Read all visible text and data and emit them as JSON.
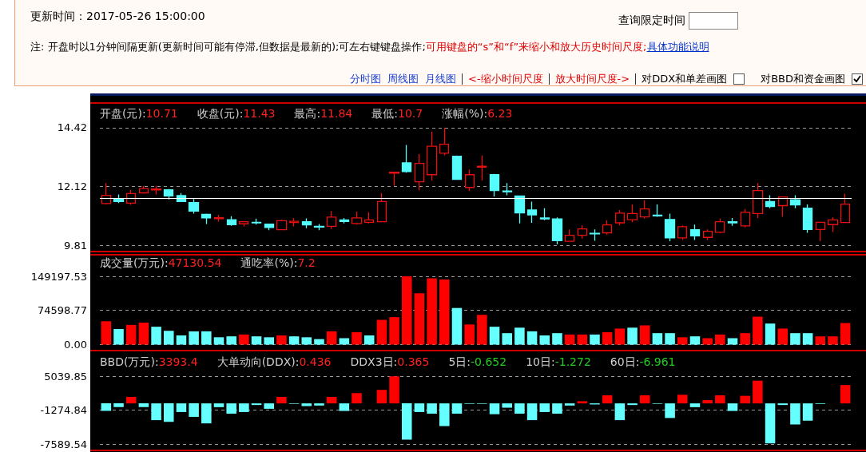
{
  "chart_data": [
    {
      "type": "candlestick",
      "annotations": [
        "更新时间：2017-05-26 15:00:00",
        "查询限定时间",
        "注: 开盘时以1分钟间隔更新(更新时间可能有停滞,但数据是最新的);可左右键键盘操作;",
        "可用键盘的“s”和“f”来缩小和放大历史时间尺度;",
        "具体功能说明",
        "分时图",
        "周线图",
        "月线图",
        "<-缩小时间尺度",
        "放大时间尺度->",
        "对DDX和单差画图",
        "对BBD和资金画图",
        "开盘(元):10.71",
        "收盘(元):11.43",
        "最高:11.84",
        "最低:10.7",
        "涨幅(%):6.23"
      ],
      "categories": [
        null,
        null,
        null,
        null,
        null,
        null,
        null,
        null,
        null,
        null,
        null,
        null,
        null,
        null,
        null,
        null,
        null,
        null,
        null,
        null,
        null,
        null,
        null,
        null,
        null,
        null,
        null,
        null,
        null,
        null,
        null,
        null,
        null,
        null,
        null,
        null,
        null,
        null,
        null,
        null,
        null,
        null,
        null,
        null,
        null,
        null,
        null,
        null,
        null,
        null,
        null,
        null,
        null,
        null,
        null,
        null,
        null,
        null,
        null,
        null
      ],
      "ohlc": [
        [
          11.45,
          12.25,
          11.42,
          11.77
        ],
        [
          11.65,
          11.81,
          11.47,
          11.53
        ],
        [
          11.47,
          11.99,
          11.4,
          11.84
        ],
        [
          11.87,
          12.14,
          11.84,
          12.04
        ],
        [
          11.98,
          12.14,
          11.81,
          12.02
        ],
        [
          11.99,
          12.02,
          11.61,
          11.75
        ],
        [
          11.76,
          11.86,
          11.51,
          11.53
        ],
        [
          11.49,
          11.63,
          11.06,
          11.16
        ],
        [
          11.03,
          11.06,
          10.65,
          10.89
        ],
        [
          10.86,
          11.01,
          10.75,
          10.9
        ],
        [
          10.82,
          10.96,
          10.58,
          10.63
        ],
        [
          10.66,
          10.74,
          10.56,
          10.74
        ],
        [
          10.72,
          10.86,
          10.63,
          10.7
        ],
        [
          10.65,
          10.65,
          10.41,
          10.52
        ],
        [
          10.43,
          10.82,
          10.41,
          10.78
        ],
        [
          10.71,
          10.88,
          10.56,
          10.76
        ],
        [
          10.74,
          10.87,
          10.49,
          10.62
        ],
        [
          10.56,
          10.65,
          10.41,
          10.53
        ],
        [
          10.56,
          11.16,
          10.46,
          10.92
        ],
        [
          10.81,
          10.89,
          10.68,
          10.75
        ],
        [
          10.67,
          11.14,
          10.63,
          10.89
        ],
        [
          10.72,
          11.11,
          10.68,
          10.81
        ],
        [
          10.74,
          11.86,
          10.74,
          11.53
        ],
        [
          12.64,
          12.68,
          12.14,
          12.68
        ],
        [
          13.04,
          13.74,
          12.66,
          12.7
        ],
        [
          12.3,
          13.38,
          11.96,
          13.02
        ],
        [
          12.58,
          14.26,
          12.35,
          13.69
        ],
        [
          13.42,
          14.42,
          13.33,
          13.77
        ],
        [
          13.3,
          13.33,
          12.4,
          12.4
        ],
        [
          12.08,
          12.78,
          11.94,
          12.58
        ],
        [
          12.87,
          13.33,
          12.35,
          12.91
        ],
        [
          12.58,
          12.61,
          11.73,
          11.96
        ],
        [
          11.94,
          12.25,
          11.78,
          11.91
        ],
        [
          11.75,
          11.77,
          10.68,
          11.09
        ],
        [
          11.2,
          11.53,
          10.7,
          11.01
        ],
        [
          10.89,
          11.27,
          10.8,
          10.85
        ],
        [
          10.85,
          10.91,
          9.86,
          10.0
        ],
        [
          9.98,
          10.44,
          9.96,
          10.21
        ],
        [
          10.21,
          10.6,
          10.08,
          10.46
        ],
        [
          10.29,
          10.44,
          10.0,
          10.27
        ],
        [
          10.31,
          10.8,
          10.24,
          10.62
        ],
        [
          10.7,
          11.2,
          10.6,
          11.08
        ],
        [
          10.82,
          11.42,
          10.72,
          11.06
        ],
        [
          10.93,
          11.58,
          10.86,
          11.24
        ],
        [
          11.0,
          11.42,
          10.93,
          10.97
        ],
        [
          10.83,
          11.06,
          9.98,
          10.11
        ],
        [
          10.11,
          10.6,
          10.03,
          10.55
        ],
        [
          10.43,
          10.63,
          10.03,
          10.19
        ],
        [
          10.13,
          10.44,
          10.03,
          10.37
        ],
        [
          10.33,
          10.86,
          10.29,
          10.74
        ],
        [
          10.74,
          10.89,
          10.58,
          10.7
        ],
        [
          10.58,
          11.24,
          10.52,
          11.11
        ],
        [
          11.06,
          12.25,
          10.89,
          11.96
        ],
        [
          11.53,
          11.78,
          11.27,
          11.34
        ],
        [
          11.37,
          11.73,
          10.93,
          11.71
        ],
        [
          11.6,
          11.78,
          11.27,
          11.4
        ],
        [
          11.27,
          11.42,
          10.31,
          10.44
        ],
        [
          10.44,
          10.72,
          9.98,
          10.72
        ],
        [
          10.63,
          10.91,
          10.34,
          10.81
        ],
        [
          10.71,
          11.84,
          10.7,
          11.43
        ]
      ],
      "colors": [
        "#e81010",
        "#54fcfc",
        "#e81010",
        "#e81010",
        "#e81010",
        "#54fcfc",
        "#54fcfc",
        "#54fcfc",
        "#54fcfc",
        "#e81010",
        "#54fcfc",
        "#e81010",
        "#54fcfc",
        "#54fcfc",
        "#e81010",
        "#e81010",
        "#54fcfc",
        "#54fcfc",
        "#e81010",
        "#54fcfc",
        "#e81010",
        "#e81010",
        "#e81010",
        "#e81010",
        "#54fcfc",
        "#e81010",
        "#e81010",
        "#e81010",
        "#54fcfc",
        "#e81010",
        "#e81010",
        "#54fcfc",
        "#54fcfc",
        "#54fcfc",
        "#54fcfc",
        "#54fcfc",
        "#54fcfc",
        "#e81010",
        "#e81010",
        "#54fcfc",
        "#e81010",
        "#e81010",
        "#e81010",
        "#e81010",
        "#54fcfc",
        "#54fcfc",
        "#e81010",
        "#54fcfc",
        "#e81010",
        "#e81010",
        "#54fcfc",
        "#e81010",
        "#e81010",
        "#54fcfc",
        "#e81010",
        "#54fcfc",
        "#54fcfc",
        "#e81010",
        "#e81010",
        "#e81010"
      ],
      "ylim": [
        9.81,
        15.35
      ],
      "yticks": [
        9.81,
        12.12,
        14.42
      ],
      "grid": "y",
      "tick_labels": "y",
      "ref_lines": [
        {
          "axis": "y",
          "value": 11.65,
          "color": "#ffffff"
        }
      ]
    },
    {
      "type": "bar",
      "annotations": [
        "成交量(万元):47130.54",
        "通吃率(%):7.2"
      ],
      "categories": [
        null,
        null,
        null,
        null,
        null,
        null,
        null,
        null,
        null,
        null,
        null,
        null,
        null,
        null,
        null,
        null,
        null,
        null,
        null,
        null,
        null,
        null,
        null,
        null,
        null,
        null,
        null,
        null,
        null,
        null,
        null,
        null,
        null,
        null,
        null,
        null,
        null,
        null,
        null,
        null,
        null,
        null,
        null,
        null,
        null,
        null,
        null,
        null,
        null,
        null,
        null,
        null,
        null,
        null,
        null,
        null,
        null,
        null,
        null,
        null
      ],
      "values": [
        51000,
        34000,
        43000,
        48000,
        39000,
        30000,
        20000,
        29000,
        29000,
        16000,
        18000,
        22000,
        18000,
        16000,
        20000,
        18000,
        16000,
        12000,
        29000,
        14000,
        27000,
        20000,
        54000,
        60000,
        149000,
        112000,
        145000,
        142000,
        80000,
        44000,
        65000,
        39000,
        25000,
        37000,
        29000,
        20000,
        25000,
        22000,
        22000,
        22000,
        27000,
        35000,
        37000,
        42000,
        25000,
        25000,
        16000,
        18000,
        14000,
        22000,
        14000,
        25000,
        61000,
        46000,
        35000,
        25000,
        25000,
        18000,
        18000,
        47130.54
      ],
      "colors": [
        "#ff0000",
        "#66ffff",
        "#ff0000",
        "#ff0000",
        "#66ffff",
        "#66ffff",
        "#66ffff",
        "#66ffff",
        "#66ffff",
        "#66ffff",
        "#66ffff",
        "#ff0000",
        "#66ffff",
        "#66ffff",
        "#ff0000",
        "#66ffff",
        "#66ffff",
        "#66ffff",
        "#ff0000",
        "#66ffff",
        "#ff0000",
        "#66ffff",
        "#ff0000",
        "#ff0000",
        "#ff0000",
        "#ff0000",
        "#ff0000",
        "#ff0000",
        "#66ffff",
        "#ff0000",
        "#ff0000",
        "#66ffff",
        "#66ffff",
        "#66ffff",
        "#66ffff",
        "#66ffff",
        "#66ffff",
        "#ff0000",
        "#ff0000",
        "#66ffff",
        "#ff0000",
        "#ff0000",
        "#66ffff",
        "#ff0000",
        "#66ffff",
        "#66ffff",
        "#ff0000",
        "#66ffff",
        "#ff0000",
        "#ff0000",
        "#66ffff",
        "#ff0000",
        "#ff0000",
        "#66ffff",
        "#ff0000",
        "#66ffff",
        "#66ffff",
        "#ff0000",
        "#ff0000",
        "#ff0000"
      ],
      "ylim": [
        0,
        149197.53
      ],
      "yticks": [
        {
          "value": 0,
          "label": "0.00"
        },
        74598.77,
        149197.53
      ],
      "grid": "y",
      "tick_labels": "y"
    },
    {
      "type": "bar",
      "annotations": [
        "BBD(万元):3393.4",
        "大单动向(DDX):0.436",
        "DDX3日:0.365",
        "5日:-0.652",
        "10日:-1.272",
        "60日:-6.961"
      ],
      "categories": [
        null,
        null,
        null,
        null,
        null,
        null,
        null,
        null,
        null,
        null,
        null,
        null,
        null,
        null,
        null,
        null,
        null,
        null,
        null,
        null,
        null,
        null,
        null,
        null,
        null,
        null,
        null,
        null,
        null,
        null,
        null,
        null,
        null,
        null,
        null,
        null,
        null,
        null,
        null,
        null,
        null,
        null,
        null,
        null,
        null,
        null,
        null,
        null,
        null,
        null,
        null,
        null,
        null,
        null,
        null,
        null,
        null,
        null,
        null,
        null
      ],
      "values": [
        -1400,
        -700,
        1200,
        -700,
        -3100,
        -3400,
        -1600,
        -2500,
        -3700,
        -700,
        -1900,
        -1600,
        -300,
        -1000,
        1200,
        -100,
        -500,
        -400,
        1200,
        -1400,
        1900,
        0,
        2500,
        5000,
        -6700,
        -1600,
        -1900,
        -4200,
        -1900,
        -100,
        -100,
        -2000,
        -800,
        -1900,
        -3100,
        -1600,
        -1900,
        -400,
        400,
        -200,
        1500,
        -3100,
        -300,
        1500,
        -100,
        -2700,
        1600,
        -700,
        600,
        1500,
        -1400,
        1400,
        4200,
        -7400,
        -300,
        -3900,
        -3200,
        -100,
        0,
        3393.4
      ],
      "colors": [
        "#66ffff",
        "#66ffff",
        "#ff0000",
        "#66ffff",
        "#66ffff",
        "#66ffff",
        "#66ffff",
        "#66ffff",
        "#66ffff",
        "#66ffff",
        "#66ffff",
        "#66ffff",
        "#66ffff",
        "#66ffff",
        "#ff0000",
        "#66ffff",
        "#66ffff",
        "#66ffff",
        "#ff0000",
        "#66ffff",
        "#ff0000",
        "#66ffff",
        "#ff0000",
        "#ff0000",
        "#66ffff",
        "#66ffff",
        "#66ffff",
        "#66ffff",
        "#66ffff",
        "#66ffff",
        "#66ffff",
        "#66ffff",
        "#66ffff",
        "#66ffff",
        "#66ffff",
        "#66ffff",
        "#66ffff",
        "#66ffff",
        "#ff0000",
        "#66ffff",
        "#ff0000",
        "#66ffff",
        "#66ffff",
        "#ff0000",
        "#66ffff",
        "#66ffff",
        "#ff0000",
        "#66ffff",
        "#ff0000",
        "#ff0000",
        "#66ffff",
        "#ff0000",
        "#ff0000",
        "#66ffff",
        "#66ffff",
        "#66ffff",
        "#66ffff",
        "#66ffff",
        "#66ffff",
        "#ff0000"
      ],
      "ylim": [
        -7589.54,
        5039.85
      ],
      "yticks": [
        -7589.54,
        -1274.84,
        5039.85
      ],
      "grid": "y",
      "tick_labels": "y"
    }
  ]
}
